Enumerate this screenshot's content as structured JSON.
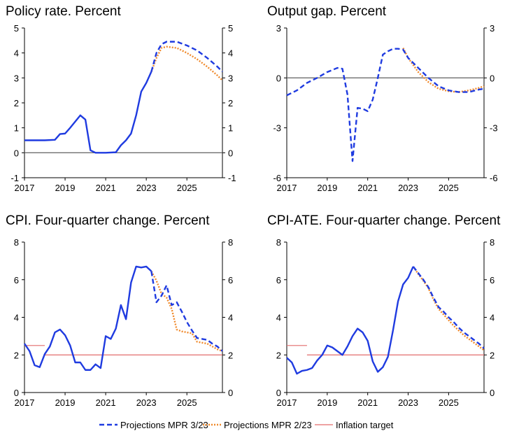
{
  "colors": {
    "mpr323": "#1f3be0",
    "mpr223": "#f08a2c",
    "target": "#e36b6b",
    "axis": "#000000",
    "zero": "#6f6f6f"
  },
  "legend": [
    {
      "key": "mpr323",
      "label": "Projections MPR 3/23",
      "style": "dashed"
    },
    {
      "key": "mpr223",
      "label": "Projections MPR 2/23",
      "style": "dotted"
    },
    {
      "key": "target",
      "label": "Inflation target",
      "style": "solid-thin"
    }
  ],
  "chart_data": [
    {
      "id": "policy",
      "type": "line",
      "title": "Policy rate. Percent",
      "xlim": [
        2017.0,
        2026.75
      ],
      "ylim": [
        -1,
        5
      ],
      "yticks": [
        -1,
        0,
        1,
        2,
        3,
        4,
        5
      ],
      "xticks": [
        2017,
        2019,
        2021,
        2023,
        2025
      ],
      "zero_line": true,
      "series": [
        {
          "key": "history",
          "style": "solid",
          "points": [
            [
              2017.0,
              0.5
            ],
            [
              2018.0,
              0.5
            ],
            [
              2018.5,
              0.52
            ],
            [
              2018.75,
              0.75
            ],
            [
              2019.0,
              0.77
            ],
            [
              2019.25,
              1.0
            ],
            [
              2019.5,
              1.25
            ],
            [
              2019.75,
              1.5
            ],
            [
              2020.0,
              1.33
            ],
            [
              2020.25,
              0.1
            ],
            [
              2020.5,
              0.0
            ],
            [
              2021.0,
              0.0
            ],
            [
              2021.5,
              0.02
            ],
            [
              2021.75,
              0.3
            ],
            [
              2022.0,
              0.5
            ],
            [
              2022.25,
              0.77
            ],
            [
              2022.5,
              1.5
            ],
            [
              2022.75,
              2.45
            ],
            [
              2023.0,
              2.8
            ],
            [
              2023.25,
              3.25
            ]
          ]
        },
        {
          "key": "mpr323",
          "style": "dashed",
          "points": [
            [
              2023.25,
              3.25
            ],
            [
              2023.5,
              4.0
            ],
            [
              2023.75,
              4.35
            ],
            [
              2024.0,
              4.45
            ],
            [
              2024.5,
              4.45
            ],
            [
              2025.0,
              4.3
            ],
            [
              2025.5,
              4.1
            ],
            [
              2026.0,
              3.8
            ],
            [
              2026.5,
              3.45
            ],
            [
              2026.75,
              3.25
            ]
          ]
        },
        {
          "key": "mpr223",
          "style": "dotted",
          "points": [
            [
              2023.25,
              3.25
            ],
            [
              2023.5,
              3.8
            ],
            [
              2023.75,
              4.2
            ],
            [
              2024.0,
              4.25
            ],
            [
              2024.5,
              4.2
            ],
            [
              2025.0,
              4.0
            ],
            [
              2025.5,
              3.75
            ],
            [
              2026.0,
              3.45
            ],
            [
              2026.5,
              3.1
            ],
            [
              2026.75,
              2.9
            ]
          ]
        }
      ]
    },
    {
      "id": "gap",
      "type": "line",
      "title": "Output gap. Percent",
      "xlim": [
        2017.0,
        2026.75
      ],
      "ylim": [
        -6,
        3
      ],
      "yticks": [
        -6,
        -3,
        0,
        3
      ],
      "xticks": [
        2017,
        2019,
        2021,
        2023,
        2025
      ],
      "zero_line": true,
      "series": [
        {
          "key": "mpr323",
          "style": "dashed",
          "points": [
            [
              2017.0,
              -1.05
            ],
            [
              2017.5,
              -0.75
            ],
            [
              2018.0,
              -0.3
            ],
            [
              2018.5,
              0.0
            ],
            [
              2019.0,
              0.35
            ],
            [
              2019.5,
              0.6
            ],
            [
              2019.75,
              0.55
            ],
            [
              2020.0,
              -1.0
            ],
            [
              2020.25,
              -5.0
            ],
            [
              2020.5,
              -1.8
            ],
            [
              2020.75,
              -1.85
            ],
            [
              2021.0,
              -2.0
            ],
            [
              2021.25,
              -1.3
            ],
            [
              2021.5,
              0.0
            ],
            [
              2021.75,
              1.4
            ],
            [
              2022.0,
              1.6
            ],
            [
              2022.25,
              1.75
            ],
            [
              2022.5,
              1.75
            ],
            [
              2022.75,
              1.7
            ],
            [
              2023.0,
              1.2
            ],
            [
              2023.5,
              0.6
            ],
            [
              2024.0,
              0.0
            ],
            [
              2024.5,
              -0.5
            ],
            [
              2025.0,
              -0.75
            ],
            [
              2025.5,
              -0.85
            ],
            [
              2026.0,
              -0.85
            ],
            [
              2026.5,
              -0.7
            ],
            [
              2026.75,
              -0.65
            ]
          ]
        },
        {
          "key": "mpr223",
          "style": "dotted",
          "points": [
            [
              2022.75,
              1.8
            ],
            [
              2023.0,
              1.2
            ],
            [
              2023.5,
              0.35
            ],
            [
              2024.0,
              -0.25
            ],
            [
              2024.5,
              -0.65
            ],
            [
              2025.0,
              -0.8
            ],
            [
              2025.5,
              -0.85
            ],
            [
              2026.0,
              -0.75
            ],
            [
              2026.5,
              -0.6
            ],
            [
              2026.75,
              -0.5
            ]
          ]
        }
      ]
    },
    {
      "id": "cpi",
      "type": "line",
      "title": "CPI. Four-quarter change. Percent",
      "xlim": [
        2017.0,
        2026.75
      ],
      "ylim": [
        0,
        8
      ],
      "yticks": [
        0,
        2,
        4,
        6,
        8
      ],
      "xticks": [
        2017,
        2019,
        2021,
        2023,
        2025
      ],
      "zero_line": false,
      "target": [
        {
          "x0": 2017.0,
          "x1": 2018.0,
          "y": 2.5
        },
        {
          "x0": 2018.0,
          "x1": 2026.75,
          "y": 2.0
        }
      ],
      "series": [
        {
          "key": "history",
          "style": "solid",
          "points": [
            [
              2017.0,
              2.6
            ],
            [
              2017.25,
              2.2
            ],
            [
              2017.5,
              1.45
            ],
            [
              2017.75,
              1.35
            ],
            [
              2018.0,
              2.05
            ],
            [
              2018.25,
              2.45
            ],
            [
              2018.5,
              3.2
            ],
            [
              2018.75,
              3.35
            ],
            [
              2019.0,
              3.05
            ],
            [
              2019.25,
              2.5
            ],
            [
              2019.5,
              1.6
            ],
            [
              2019.75,
              1.6
            ],
            [
              2020.0,
              1.2
            ],
            [
              2020.25,
              1.2
            ],
            [
              2020.5,
              1.5
            ],
            [
              2020.75,
              1.3
            ],
            [
              2021.0,
              3.0
            ],
            [
              2021.25,
              2.85
            ],
            [
              2021.5,
              3.4
            ],
            [
              2021.75,
              4.65
            ],
            [
              2022.0,
              3.9
            ],
            [
              2022.25,
              5.85
            ],
            [
              2022.5,
              6.7
            ],
            [
              2022.75,
              6.65
            ],
            [
              2023.0,
              6.7
            ],
            [
              2023.25,
              6.45
            ]
          ]
        },
        {
          "key": "mpr323",
          "style": "dashed",
          "points": [
            [
              2023.25,
              6.45
            ],
            [
              2023.5,
              4.8
            ],
            [
              2023.75,
              5.15
            ],
            [
              2024.0,
              5.7
            ],
            [
              2024.25,
              4.65
            ],
            [
              2024.5,
              4.8
            ],
            [
              2024.75,
              4.3
            ],
            [
              2025.0,
              3.75
            ],
            [
              2025.25,
              3.3
            ],
            [
              2025.5,
              2.9
            ],
            [
              2025.75,
              2.85
            ],
            [
              2026.0,
              2.8
            ],
            [
              2026.25,
              2.6
            ],
            [
              2026.5,
              2.45
            ],
            [
              2026.75,
              2.2
            ]
          ]
        },
        {
          "key": "mpr223",
          "style": "dotted",
          "points": [
            [
              2023.25,
              6.45
            ],
            [
              2023.5,
              5.95
            ],
            [
              2023.75,
              5.25
            ],
            [
              2024.0,
              5.05
            ],
            [
              2024.25,
              4.45
            ],
            [
              2024.5,
              3.35
            ],
            [
              2024.75,
              3.25
            ],
            [
              2025.0,
              3.2
            ],
            [
              2025.25,
              3.15
            ],
            [
              2025.5,
              2.7
            ],
            [
              2025.75,
              2.65
            ],
            [
              2026.0,
              2.6
            ],
            [
              2026.25,
              2.45
            ],
            [
              2026.5,
              2.3
            ],
            [
              2026.75,
              2.2
            ]
          ]
        }
      ]
    },
    {
      "id": "cpiate",
      "type": "line",
      "title": "CPI-ATE. Four-quarter change. Percent",
      "xlim": [
        2017.0,
        2026.75
      ],
      "ylim": [
        0,
        8
      ],
      "yticks": [
        0,
        2,
        4,
        6,
        8
      ],
      "xticks": [
        2017,
        2019,
        2021,
        2023,
        2025
      ],
      "zero_line": false,
      "target": [
        {
          "x0": 2017.0,
          "x1": 2018.0,
          "y": 2.5
        },
        {
          "x0": 2018.0,
          "x1": 2026.75,
          "y": 2.0
        }
      ],
      "series": [
        {
          "key": "history",
          "style": "solid",
          "points": [
            [
              2017.0,
              1.85
            ],
            [
              2017.25,
              1.6
            ],
            [
              2017.5,
              1.0
            ],
            [
              2017.75,
              1.15
            ],
            [
              2018.0,
              1.2
            ],
            [
              2018.25,
              1.3
            ],
            [
              2018.5,
              1.7
            ],
            [
              2018.75,
              2.0
            ],
            [
              2019.0,
              2.5
            ],
            [
              2019.25,
              2.4
            ],
            [
              2019.5,
              2.2
            ],
            [
              2019.75,
              2.0
            ],
            [
              2020.0,
              2.45
            ],
            [
              2020.25,
              3.0
            ],
            [
              2020.5,
              3.4
            ],
            [
              2020.75,
              3.2
            ],
            [
              2021.0,
              2.75
            ],
            [
              2021.25,
              1.65
            ],
            [
              2021.5,
              1.1
            ],
            [
              2021.75,
              1.35
            ],
            [
              2022.0,
              1.9
            ],
            [
              2022.25,
              3.3
            ],
            [
              2022.5,
              4.85
            ],
            [
              2022.75,
              5.75
            ],
            [
              2023.0,
              6.1
            ],
            [
              2023.25,
              6.7
            ]
          ]
        },
        {
          "key": "mpr323",
          "style": "dashed",
          "points": [
            [
              2023.25,
              6.7
            ],
            [
              2023.5,
              6.35
            ],
            [
              2023.75,
              6.0
            ],
            [
              2024.0,
              5.6
            ],
            [
              2024.25,
              5.05
            ],
            [
              2024.5,
              4.55
            ],
            [
              2024.75,
              4.3
            ],
            [
              2025.0,
              4.0
            ],
            [
              2025.25,
              3.75
            ],
            [
              2025.5,
              3.45
            ],
            [
              2025.75,
              3.2
            ],
            [
              2026.0,
              3.0
            ],
            [
              2026.25,
              2.8
            ],
            [
              2026.5,
              2.6
            ],
            [
              2026.75,
              2.35
            ]
          ]
        },
        {
          "key": "mpr223",
          "style": "dotted",
          "points": [
            [
              2023.25,
              6.7
            ],
            [
              2023.5,
              6.3
            ],
            [
              2023.75,
              5.95
            ],
            [
              2024.0,
              5.55
            ],
            [
              2024.25,
              4.95
            ],
            [
              2024.5,
              4.45
            ],
            [
              2024.75,
              4.15
            ],
            [
              2025.0,
              3.85
            ],
            [
              2025.25,
              3.55
            ],
            [
              2025.5,
              3.3
            ],
            [
              2025.75,
              3.05
            ],
            [
              2026.0,
              2.85
            ],
            [
              2026.25,
              2.65
            ],
            [
              2026.5,
              2.45
            ],
            [
              2026.75,
              2.25
            ]
          ]
        }
      ]
    }
  ]
}
